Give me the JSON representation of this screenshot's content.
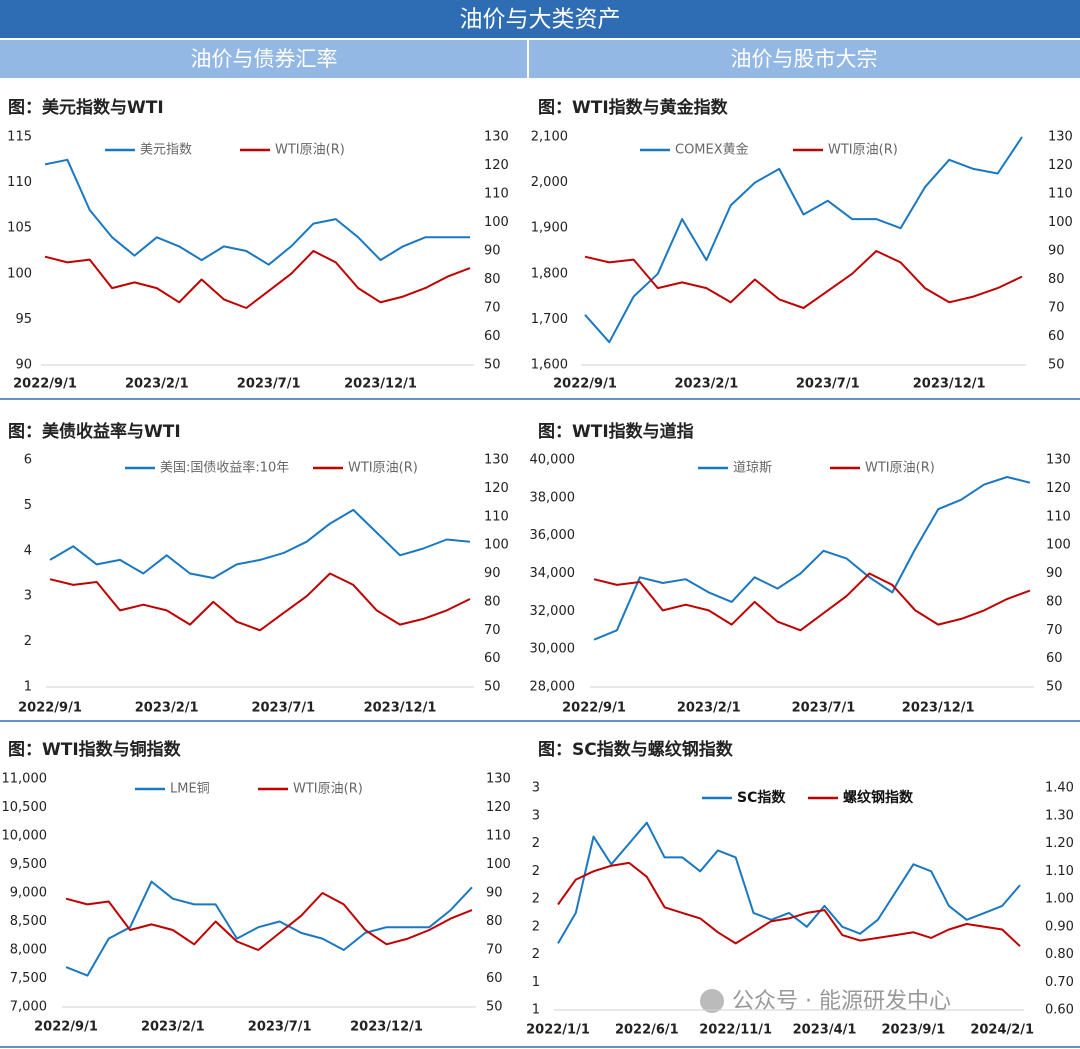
{
  "header": {
    "title": "油价与大类资产",
    "sections": [
      "油价与债券汇率",
      "油价与股市大宗"
    ]
  },
  "watermark": "公众号 · 能源研发中心",
  "chart_data": [
    {
      "type": "line",
      "title": "图：美元指数与WTI",
      "categories": [
        "2022/9/1",
        null,
        null,
        null,
        null,
        "2023/2/1",
        null,
        null,
        null,
        null,
        "2023/7/1",
        null,
        null,
        null,
        null,
        "2023/12/1",
        null,
        null,
        null,
        null
      ],
      "series": [
        {
          "name": "美元指数",
          "color": "#1a78c2",
          "values": [
            112,
            112.5,
            107,
            104,
            102,
            104,
            103,
            101.5,
            103,
            102.5,
            101,
            103,
            105.5,
            106,
            104,
            101.5,
            103,
            104,
            104,
            104
          ]
        },
        {
          "name": "WTI原油(R)",
          "color": "#c00000",
          "axis": "y2",
          "values": [
            88,
            86,
            87,
            77,
            79,
            77,
            72,
            80,
            73,
            70,
            76,
            82,
            90,
            86,
            77,
            72,
            74,
            77,
            81,
            84
          ]
        }
      ],
      "ylim": [
        90,
        115
      ],
      "yticks": [
        90,
        95,
        100,
        105,
        110,
        115
      ],
      "y2lim": [
        50,
        130
      ],
      "y2ticks": [
        50,
        60,
        70,
        80,
        90,
        100,
        110,
        120,
        130
      ]
    },
    {
      "type": "line",
      "title": "图：WTI指数与黄金指数",
      "categories": [
        "2022/9/1",
        null,
        null,
        null,
        null,
        "2023/2/1",
        null,
        null,
        null,
        null,
        "2023/7/1",
        null,
        null,
        null,
        null,
        "2023/12/1",
        null,
        null,
        null
      ],
      "series": [
        {
          "name": "COMEX黄金",
          "color": "#1a78c2",
          "values": [
            1710,
            1650,
            1750,
            1800,
            1920,
            1830,
            1950,
            2000,
            2030,
            1930,
            1960,
            1920,
            1920,
            1900,
            1990,
            2050,
            2030,
            2020,
            2100
          ]
        },
        {
          "name": "WTI原油(R)",
          "color": "#c00000",
          "axis": "y2",
          "values": [
            88,
            86,
            87,
            77,
            79,
            77,
            72,
            80,
            73,
            70,
            76,
            82,
            90,
            86,
            77,
            72,
            74,
            77,
            81
          ]
        }
      ],
      "ylim": [
        1600,
        2100
      ],
      "yticks": [
        {
          "value": 1600,
          "label": "1,600"
        },
        {
          "value": 1700,
          "label": "1,700"
        },
        {
          "value": 1800,
          "label": "1,800"
        },
        {
          "value": 1900,
          "label": "1,900"
        },
        {
          "value": 2000,
          "label": "2,000"
        },
        {
          "value": 2100,
          "label": "2,100"
        }
      ],
      "y2lim": [
        50,
        130
      ],
      "y2ticks": [
        50,
        60,
        70,
        80,
        90,
        100,
        110,
        120,
        130
      ]
    },
    {
      "type": "line",
      "title": "图：美债收益率与WTI",
      "categories": [
        "2022/9/1",
        null,
        null,
        null,
        null,
        "2023/2/1",
        null,
        null,
        null,
        null,
        "2023/7/1",
        null,
        null,
        null,
        null,
        "2023/12/1",
        null,
        null,
        null
      ],
      "series": [
        {
          "name": "美国:国债收益率:10年",
          "color": "#1a78c2",
          "values": [
            3.8,
            4.1,
            3.7,
            3.8,
            3.5,
            3.9,
            3.5,
            3.4,
            3.7,
            3.8,
            3.95,
            4.2,
            4.6,
            4.9,
            4.4,
            3.9,
            4.05,
            4.25,
            4.2
          ]
        },
        {
          "name": "WTI原油(R)",
          "color": "#c00000",
          "axis": "y2",
          "values": [
            88,
            86,
            87,
            77,
            79,
            77,
            72,
            80,
            73,
            70,
            76,
            82,
            90,
            86,
            77,
            72,
            74,
            77,
            81
          ]
        }
      ],
      "ylim": [
        1,
        6
      ],
      "yticks": [
        1,
        2,
        3,
        4,
        5,
        6
      ],
      "y2lim": [
        50,
        130
      ],
      "y2ticks": [
        50,
        60,
        70,
        80,
        90,
        100,
        110,
        120,
        130
      ]
    },
    {
      "type": "line",
      "title": "图：WTI指数与道指",
      "categories": [
        "2022/9/1",
        null,
        null,
        null,
        null,
        "2023/2/1",
        null,
        null,
        null,
        null,
        "2023/7/1",
        null,
        null,
        null,
        null,
        "2023/12/1",
        null,
        null,
        null,
        null
      ],
      "series": [
        {
          "name": "道琼斯",
          "color": "#1a78c2",
          "values": [
            30500,
            31000,
            33800,
            33500,
            33700,
            33000,
            32500,
            33800,
            33200,
            34000,
            35200,
            34800,
            33800,
            33000,
            35300,
            37400,
            37900,
            38700,
            39100,
            38800
          ]
        },
        {
          "name": "WTI原油(R)",
          "color": "#c00000",
          "axis": "y2",
          "values": [
            88,
            86,
            87,
            77,
            79,
            77,
            72,
            80,
            73,
            70,
            76,
            82,
            90,
            86,
            77,
            72,
            74,
            77,
            81,
            84
          ]
        }
      ],
      "ylim": [
        28000,
        40000
      ],
      "yticks": [
        {
          "value": 28000,
          "label": "28,000"
        },
        {
          "value": 30000,
          "label": "30,000"
        },
        {
          "value": 32000,
          "label": "32,000"
        },
        {
          "value": 34000,
          "label": "34,000"
        },
        {
          "value": 36000,
          "label": "36,000"
        },
        {
          "value": 38000,
          "label": "38,000"
        },
        {
          "value": 40000,
          "label": "40,000"
        }
      ],
      "y2lim": [
        50,
        130
      ],
      "y2ticks": [
        50,
        60,
        70,
        80,
        90,
        100,
        110,
        120,
        130
      ]
    },
    {
      "type": "line",
      "title": "图：WTI指数与铜指数",
      "categories": [
        "2022/9/1",
        null,
        null,
        null,
        null,
        "2023/2/1",
        null,
        null,
        null,
        null,
        "2023/7/1",
        null,
        null,
        null,
        null,
        "2023/12/1",
        null,
        null,
        null,
        null
      ],
      "series": [
        {
          "name": "LME铜",
          "color": "#1a78c2",
          "values": [
            7700,
            7550,
            8200,
            8400,
            9200,
            8900,
            8800,
            8800,
            8200,
            8400,
            8500,
            8300,
            8200,
            8000,
            8300,
            8400,
            8400,
            8400,
            8700,
            9100
          ]
        },
        {
          "name": "WTI原油(R)",
          "color": "#c00000",
          "axis": "y2",
          "values": [
            88,
            86,
            87,
            77,
            79,
            77,
            72,
            80,
            73,
            70,
            76,
            82,
            90,
            86,
            77,
            72,
            74,
            77,
            81,
            84
          ]
        }
      ],
      "ylim": [
        7000,
        11000
      ],
      "yticks": [
        {
          "value": 7000,
          "label": "7,000"
        },
        {
          "value": 7500,
          "label": "7,500"
        },
        {
          "value": 8000,
          "label": "8,000"
        },
        {
          "value": 8500,
          "label": "8,500"
        },
        {
          "value": 9000,
          "label": "9,000"
        },
        {
          "value": 9500,
          "label": "9,500"
        },
        {
          "value": 10000,
          "label": "10,000"
        },
        {
          "value": 10500,
          "label": "10,500"
        },
        {
          "value": 11000,
          "label": "11,000"
        }
      ],
      "y2lim": [
        50,
        130
      ],
      "y2ticks": [
        50,
        60,
        70,
        80,
        90,
        100,
        110,
        120,
        130
      ]
    },
    {
      "type": "line",
      "title": "图：SC指数与螺纹钢指数",
      "categories": [
        "2022/1/1",
        null,
        null,
        null,
        null,
        "2022/6/1",
        null,
        null,
        null,
        null,
        "2022/11/1",
        null,
        null,
        null,
        null,
        "2023/4/1",
        null,
        null,
        null,
        null,
        "2023/9/1",
        null,
        null,
        null,
        null,
        "2024/2/1",
        null
      ],
      "series": [
        {
          "name": "SC指数",
          "color": "#1a78c2",
          "values": [
            1.68,
            1.9,
            2.45,
            2.25,
            2.4,
            2.55,
            2.3,
            2.3,
            2.2,
            2.35,
            2.3,
            1.9,
            1.85,
            1.9,
            1.8,
            1.95,
            1.8,
            1.75,
            1.85,
            2.05,
            2.25,
            2.2,
            1.95,
            1.85,
            1.9,
            1.95,
            2.1
          ]
        },
        {
          "name": "螺纹钢指数",
          "color": "#c00000",
          "axis": "y2",
          "values": [
            0.98,
            1.07,
            1.1,
            1.12,
            1.13,
            1.08,
            0.97,
            0.95,
            0.93,
            0.88,
            0.84,
            0.88,
            0.92,
            0.93,
            0.95,
            0.96,
            0.87,
            0.85,
            0.86,
            0.87,
            0.88,
            0.86,
            0.89,
            0.91,
            0.9,
            0.89,
            0.83
          ]
        }
      ],
      "ylim": [
        1.2,
        2.8
      ],
      "yticks": [
        {
          "value": 1.2,
          "label": "1"
        },
        {
          "value": 1.4,
          "label": "1"
        },
        {
          "value": 1.6,
          "label": "2"
        },
        {
          "value": 1.8,
          "label": "2"
        },
        {
          "value": 2.0,
          "label": "2"
        },
        {
          "value": 2.2,
          "label": "2"
        },
        {
          "value": 2.4,
          "label": "2"
        },
        {
          "value": 2.6,
          "label": "3"
        },
        {
          "value": 2.8,
          "label": "3"
        }
      ],
      "y2lim": [
        0.6,
        1.4
      ],
      "y2ticks": [
        {
          "value": 0.6,
          "label": "0.60"
        },
        {
          "value": 0.7,
          "label": "0.70"
        },
        {
          "value": 0.8,
          "label": "0.80"
        },
        {
          "value": 0.9,
          "label": "0.90"
        },
        {
          "value": 1.0,
          "label": "1.00"
        },
        {
          "value": 1.1,
          "label": "1.10"
        },
        {
          "value": 1.2,
          "label": "1.20"
        },
        {
          "value": 1.3,
          "label": "1.30"
        },
        {
          "value": 1.4,
          "label": "1.40"
        }
      ]
    }
  ]
}
